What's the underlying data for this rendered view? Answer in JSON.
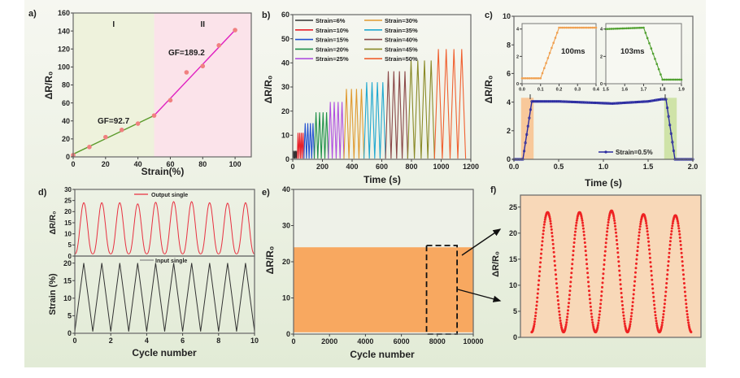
{
  "chart_data": [
    {
      "panel": "a)",
      "type": "scatter",
      "xlabel": "Strain(%)",
      "ylabel": "ΔR/R₀",
      "xlim": [
        0,
        110
      ],
      "ylim": [
        0,
        160
      ],
      "xticks": [
        "0",
        "20",
        "40",
        "60",
        "80",
        "100"
      ],
      "yticks": [
        "0",
        "20",
        "40",
        "60",
        "80",
        "100",
        "120",
        "140",
        "160"
      ],
      "regions": [
        {
          "label": "I",
          "from": 0,
          "to": 50,
          "color": "#eef2dc",
          "label_color": "#4a7a20"
        },
        {
          "label": "II",
          "from": 50,
          "to": 110,
          "color": "#fbe3ea",
          "label_color": "#e020c0"
        }
      ],
      "points": [
        [
          0,
          2
        ],
        [
          10,
          11
        ],
        [
          20,
          22
        ],
        [
          30,
          30
        ],
        [
          40,
          37
        ],
        [
          50,
          46
        ],
        [
          60,
          63
        ],
        [
          70,
          94
        ],
        [
          80,
          101
        ],
        [
          90,
          124
        ],
        [
          100,
          141
        ]
      ],
      "point_color": "#f08080",
      "fits": [
        {
          "label": "GF=92.7",
          "from": [
            0,
            3
          ],
          "to": [
            50,
            46
          ],
          "color": "#5a9a2a"
        },
        {
          "label": "GF=189.2",
          "from": [
            50,
            46
          ],
          "to": [
            100,
            141
          ],
          "color": "#e020c0"
        }
      ]
    },
    {
      "panel": "b)",
      "type": "line",
      "xlabel": "Time (s)",
      "ylabel": "ΔR/R₀",
      "xlim": [
        0,
        1200
      ],
      "ylim": [
        0,
        60
      ],
      "xticks": [
        "0",
        "200",
        "400",
        "600",
        "800",
        "1000",
        "1200"
      ],
      "yticks": [
        "0",
        "10",
        "20",
        "30",
        "40",
        "50",
        "60"
      ],
      "series": [
        {
          "name": "Strain=6%",
          "color": "#333333",
          "peak": 3.5,
          "t": [
            0,
            30
          ],
          "cycles": 4
        },
        {
          "name": "Strain=10%",
          "color": "#e8202a",
          "peak": 11,
          "t": [
            30,
            75
          ],
          "cycles": 4
        },
        {
          "name": "Strain=15%",
          "color": "#2050d0",
          "peak": 15,
          "t": [
            75,
            145
          ],
          "cycles": 4
        },
        {
          "name": "Strain=20%",
          "color": "#20904a",
          "peak": 19.5,
          "t": [
            145,
            240
          ],
          "cycles": 4
        },
        {
          "name": "Strain=25%",
          "color": "#b050e0",
          "peak": 23.8,
          "t": [
            240,
            345
          ],
          "cycles": 4
        },
        {
          "name": "Strain=30%",
          "color": "#e09a30",
          "peak": 29.2,
          "t": [
            345,
            480
          ],
          "cycles": 4
        },
        {
          "name": "Strain=35%",
          "color": "#20a8d0",
          "peak": 32,
          "t": [
            480,
            625
          ],
          "cycles": 4
        },
        {
          "name": "Strain=40%",
          "color": "#8a4848",
          "peak": 36.5,
          "t": [
            625,
            775
          ],
          "cycles": 4
        },
        {
          "name": "Strain=45%",
          "color": "#8a8a28",
          "peak": 41,
          "t": [
            775,
            955
          ],
          "cycles": 4
        },
        {
          "name": "Strain=50%",
          "color": "#f06030",
          "peak": 45.7,
          "t": [
            955,
            1165
          ],
          "cycles": 4
        }
      ]
    },
    {
      "panel": "c)",
      "type": "line",
      "xlabel": "Time (s)",
      "ylabel": "ΔR/R₀",
      "xlim": [
        0,
        2.0
      ],
      "ylim": [
        0,
        10
      ],
      "xticks": [
        "0.0",
        "0.5",
        "1.0",
        "1.5",
        "2.0"
      ],
      "yticks": [
        "0",
        "2",
        "4",
        "6",
        "8",
        "10"
      ],
      "series": [
        {
          "name": "Strain=0.5%",
          "color": "#2a2aa0",
          "points": [
            [
              0,
              0
            ],
            [
              0.1,
              0
            ],
            [
              0.2,
              4.05
            ],
            [
              0.5,
              4.05
            ],
            [
              1.1,
              3.9
            ],
            [
              1.5,
              4.05
            ],
            [
              1.65,
              4.2
            ],
            [
              1.7,
              4.2
            ],
            [
              1.8,
              0
            ],
            [
              2.0,
              0
            ]
          ]
        }
      ],
      "shading": [
        {
          "from": 0.08,
          "to": 0.22,
          "top": 4.3,
          "color": "#f8c89a"
        },
        {
          "from": 1.68,
          "to": 1.82,
          "top": 4.3,
          "color": "#cfe3a8"
        }
      ],
      "insets": [
        {
          "xlim": [
            0.0,
            0.4
          ],
          "ylim": [
            0,
            4.4
          ],
          "xticks": [
            "0.0",
            "0.1",
            "0.2",
            "0.3",
            "0.4"
          ],
          "yticks": [
            "0",
            "2",
            "4"
          ],
          "color": "#f0a050",
          "annotation": "100ms",
          "points": [
            [
              0,
              0.4
            ],
            [
              0.1,
              0.4
            ],
            [
              0.2,
              4.1
            ],
            [
              0.4,
              4.1
            ]
          ]
        },
        {
          "xlim": [
            1.5,
            1.9
          ],
          "ylim": [
            0,
            4.4
          ],
          "xticks": [
            "1.5",
            "1.6",
            "1.7",
            "1.8",
            "1.9"
          ],
          "yticks": [
            "0",
            "2",
            "4"
          ],
          "color": "#50a030",
          "annotation": "103ms",
          "points": [
            [
              1.5,
              4.0
            ],
            [
              1.7,
              4.1
            ],
            [
              1.8,
              0.3
            ],
            [
              1.9,
              0.3
            ]
          ]
        }
      ],
      "annotation_color": "#ee2020"
    },
    {
      "panel": "d)",
      "type": "line",
      "xlabel": "Cycle number",
      "xlim": [
        0,
        10
      ],
      "xticks": [
        "0",
        "2",
        "4",
        "6",
        "8",
        "10"
      ],
      "top": {
        "ylabel": "ΔR/R₀",
        "ylim": [
          0,
          30
        ],
        "yticks": [
          "0",
          "5",
          "10",
          "15",
          "20",
          "25",
          "30"
        ],
        "series": {
          "name": "Output single",
          "color": "#e83040",
          "min": 1,
          "peaks": [
            24,
            24,
            24,
            23.5,
            24.2,
            24.5,
            24.5,
            24,
            23.8,
            24
          ]
        }
      },
      "bottom": {
        "ylabel": "Strain (%)",
        "ylim": [
          0,
          22
        ],
        "yticks": [
          "0",
          "5",
          "10",
          "15",
          "20"
        ],
        "series": {
          "name": "Input single",
          "color": "#333333",
          "min": 0.5,
          "peak": 20
        }
      }
    },
    {
      "panel": "e)",
      "type": "area",
      "xlabel": "Cycle number",
      "ylabel": "ΔR/R₀",
      "xlim": [
        0,
        10000
      ],
      "ylim": [
        0,
        40
      ],
      "xticks": [
        "0",
        "2000",
        "4000",
        "6000",
        "8000",
        "10000"
      ],
      "yticks": [
        "0",
        "10",
        "20",
        "30",
        "40"
      ],
      "band": {
        "min": 0.5,
        "max": 24,
        "color": "#f8a860"
      },
      "zoom_box": {
        "x": [
          7400,
          9100
        ],
        "y": [
          0,
          24.5
        ]
      }
    },
    {
      "panel": "f)",
      "type": "scatter",
      "ylabel": "ΔR/R₀",
      "ylim": [
        0,
        27.3
      ],
      "yticks": [
        "0",
        "5",
        "10",
        "15",
        "20",
        "25"
      ],
      "cycles": 5,
      "min": 1,
      "peaks": [
        24,
        24,
        24.3,
        23.6,
        23.4
      ],
      "point_color": "#ee2222",
      "background": "#f8d8b8"
    }
  ]
}
